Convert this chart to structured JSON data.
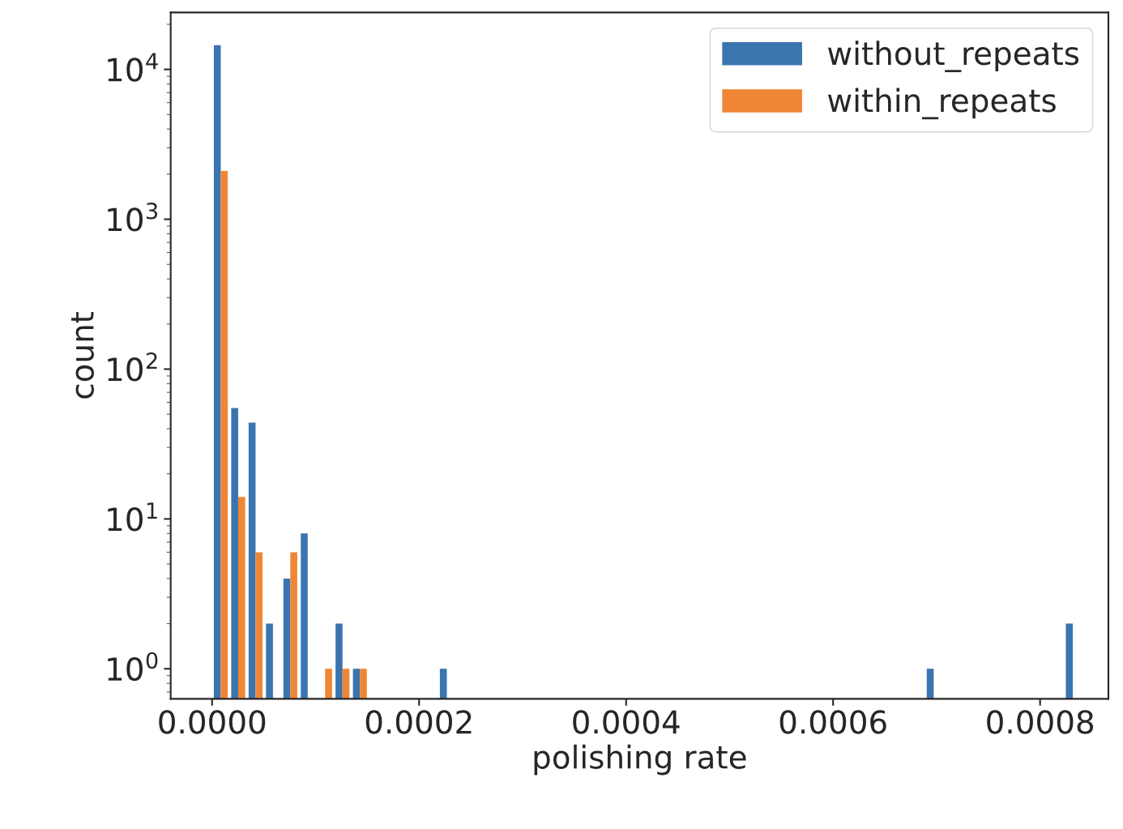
{
  "chart_data": {
    "type": "histogram",
    "xlabel": "polishing rate",
    "ylabel": "count",
    "bins": [
      0,
      1.68e-05,
      3.36e-05,
      5.04e-05,
      6.72e-05,
      8.4e-05,
      0.0001008,
      0.0001176,
      0.0001344,
      0.0001512,
      0.000168,
      0.0001848,
      0.0002016,
      0.0002184,
      0.0002352,
      0.000252,
      0.0002688,
      0.0002856,
      0.0003024,
      0.0003192,
      0.000336,
      0.0003528,
      0.0003696,
      0.0003864,
      0.0004032,
      0.00042,
      0.0004368,
      0.0004536,
      0.0004704,
      0.0004872,
      0.000504,
      0.0005208,
      0.0005376,
      0.0005544,
      0.0005712,
      0.000588,
      0.0006048,
      0.0006216,
      0.0006384,
      0.0006552,
      0.000672,
      0.0006888,
      0.0007056,
      0.0007224,
      0.0007392,
      0.000756,
      0.0007728,
      0.0007896,
      0.0008064,
      0.0008232,
      0.00084
    ],
    "series": [
      {
        "name": "without_repeats",
        "color": "#3b75af",
        "values": [
          14500,
          55,
          44,
          2,
          4,
          8,
          null,
          2,
          1,
          null,
          null,
          null,
          null,
          1,
          null,
          null,
          null,
          null,
          null,
          null,
          null,
          null,
          null,
          null,
          null,
          null,
          null,
          null,
          null,
          null,
          null,
          null,
          null,
          null,
          null,
          null,
          null,
          null,
          null,
          null,
          null,
          1,
          null,
          null,
          null,
          null,
          null,
          null,
          null,
          2
        ]
      },
      {
        "name": "within_repeats",
        "color": "#ef8636",
        "values": [
          2100,
          14,
          6,
          null,
          6,
          null,
          1,
          1,
          1,
          null,
          null,
          null,
          null,
          null,
          null,
          null,
          null,
          null,
          null,
          null,
          null,
          null,
          null,
          null,
          null,
          null,
          null,
          null,
          null,
          null,
          null,
          null,
          null,
          null,
          null,
          null,
          null,
          null,
          null,
          null,
          null,
          null,
          null,
          null,
          null,
          null,
          null,
          null,
          null,
          null
        ]
      }
    ],
    "log": "y",
    "xlim": [
      -4e-05,
      0.000866
    ],
    "ylim": [
      0.63,
      24000
    ],
    "xticks": [
      {
        "value": 0,
        "label": "0.0000"
      },
      {
        "value": 0.0002,
        "label": "0.0002"
      },
      {
        "value": 0.0004,
        "label": "0.0004"
      },
      {
        "value": 0.0006,
        "label": "0.0006"
      },
      {
        "value": 0.0008,
        "label": "0.0008"
      }
    ],
    "yticks": [
      {
        "value": 1,
        "label": "10$^{0}$"
      },
      {
        "value": 10,
        "label": "10$^{1}$"
      },
      {
        "value": 100,
        "label": "10$^{2}$"
      },
      {
        "value": 1000,
        "label": "10$^{3}$"
      },
      {
        "value": 10000,
        "label": "10$^{4}$"
      }
    ],
    "grid": false,
    "legend": "top right"
  }
}
